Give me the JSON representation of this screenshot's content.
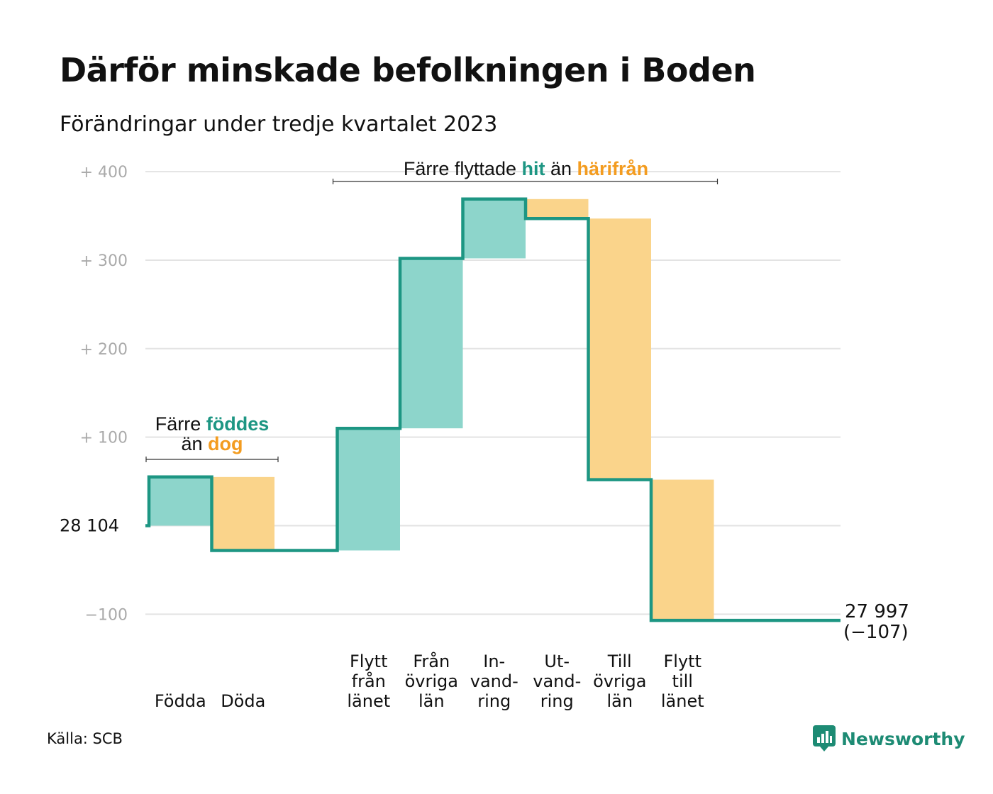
{
  "title": "Därför minskade befolkningen i Boden",
  "subtitle": "Förändringar under tredje kvartalet 2023",
  "source": "Källa: SCB",
  "brand": {
    "name": "Newsworthy",
    "icon": "newsworthy-logo-icon",
    "color": "#1d8b74"
  },
  "colors": {
    "increase": "#8dd5cb",
    "decrease": "#fad48b",
    "line": "#1d9683",
    "teal_text": "#1d9683",
    "orange_text": "#f39c20",
    "grid": "#e3e3e3"
  },
  "chart_data": {
    "type": "waterfall",
    "title": "Därför minskade befolkningen i Boden",
    "subtitle": "Förändringar under tredje kvartalet 2023",
    "baseline": 28104,
    "baseline_label": "28  104",
    "ylim": [
      -120,
      420
    ],
    "yticks": [
      {
        "value": 400,
        "label": "+  400"
      },
      {
        "value": 300,
        "label": "+  300"
      },
      {
        "value": 200,
        "label": "+  200"
      },
      {
        "value": 100,
        "label": "+  100"
      },
      {
        "value": 0,
        "label": ""
      },
      {
        "value": -100,
        "label": "−100"
      }
    ],
    "steps": [
      {
        "category": "Födda",
        "label_lines": [
          "Födda"
        ],
        "type": "increase",
        "value": 55
      },
      {
        "category": "Döda",
        "label_lines": [
          "Döda"
        ],
        "type": "decrease",
        "value": -83
      },
      {
        "category": "",
        "label_lines": [],
        "type": "gap",
        "value": 0
      },
      {
        "category": "Flytt från länet",
        "label_lines": [
          "Flytt",
          "från",
          "länet"
        ],
        "type": "increase",
        "value": 138
      },
      {
        "category": "Från övriga län",
        "label_lines": [
          "Från",
          "övriga",
          "län"
        ],
        "type": "increase",
        "value": 192
      },
      {
        "category": "Invandring",
        "label_lines": [
          "In-",
          "vand-",
          "ring"
        ],
        "type": "increase",
        "value": 67
      },
      {
        "category": "Utvandring",
        "label_lines": [
          "Ut-",
          "vand-",
          "ring"
        ],
        "type": "decrease",
        "value": -22
      },
      {
        "category": "Till övriga län",
        "label_lines": [
          "Till",
          "övriga",
          "län"
        ],
        "type": "decrease",
        "value": -295
      },
      {
        "category": "Flytt till länet",
        "label_lines": [
          "Flytt",
          "till",
          "länet"
        ],
        "type": "decrease",
        "value": -159
      }
    ],
    "total": {
      "value": 27997,
      "change": -107,
      "label_value": "27 997",
      "label_change": "(−107)"
    },
    "annotations": [
      {
        "name": "births-deaths",
        "spans": [
          "Födda",
          "Döda"
        ],
        "line1": [
          {
            "text": "Färre ",
            "style": "plain"
          },
          {
            "text": "föddes",
            "style": "teal"
          }
        ],
        "line2": [
          {
            "text": "än ",
            "style": "plain"
          },
          {
            "text": "dog",
            "style": "orange"
          }
        ]
      },
      {
        "name": "migration",
        "spans": [
          "Flytt från länet",
          "Flytt till länet"
        ],
        "line1": [
          {
            "text": "Färre flyttade ",
            "style": "plain"
          },
          {
            "text": "hit",
            "style": "teal"
          },
          {
            "text": "  än ",
            "style": "plain"
          },
          {
            "text": "härifrån",
            "style": "orange"
          }
        ]
      }
    ]
  }
}
